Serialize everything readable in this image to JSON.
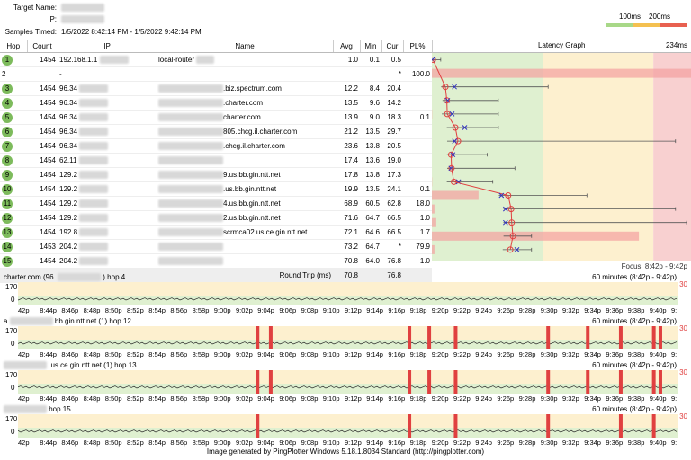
{
  "header": {
    "target_label": "Target Name:",
    "ip_label": "IP:",
    "samples_label": "Samples Timed:",
    "samples_value": "1/5/2022 8:42:14 PM - 1/5/2022 9:42:14 PM",
    "legend_100": "100ms",
    "legend_200": "200ms"
  },
  "columns": {
    "hop": "Hop",
    "count": "Count",
    "ip": "IP",
    "name": "Name",
    "avg": "Avg",
    "min": "Min",
    "cur": "Cur",
    "pl": "PL%",
    "graph": "Latency Graph",
    "scale": "234ms"
  },
  "rows": [
    {
      "hop": "1",
      "count": "1454",
      "ip": "192.168.1.1",
      "name": "local-router",
      "avg": "1.0",
      "min": "0.1",
      "cur": "0.5",
      "pl": ""
    },
    {
      "hop": "2",
      "count": "",
      "ip": "-",
      "name": "",
      "avg": "",
      "min": "",
      "cur": "*",
      "pl": "100.0"
    },
    {
      "hop": "3",
      "count": "1454",
      "ip": "96.34",
      "name": ".biz.spectrum.com",
      "avg": "12.2",
      "min": "8.4",
      "cur": "20.4",
      "pl": ""
    },
    {
      "hop": "4",
      "count": "1454",
      "ip": "96.34",
      "name": ".charter.com",
      "avg": "13.5",
      "min": "9.6",
      "cur": "14.2",
      "pl": ""
    },
    {
      "hop": "5",
      "count": "1454",
      "ip": "96.34",
      "name": "charter.com",
      "avg": "13.9",
      "min": "9.0",
      "cur": "18.3",
      "pl": "0.1"
    },
    {
      "hop": "6",
      "count": "1454",
      "ip": "96.34",
      "name": "805.chcg.il.charter.com",
      "avg": "21.2",
      "min": "13.5",
      "cur": "29.7",
      "pl": ""
    },
    {
      "hop": "7",
      "count": "1454",
      "ip": "96.34",
      "name": ".chcg.il.charter.com",
      "avg": "23.6",
      "min": "13.8",
      "cur": "20.5",
      "pl": ""
    },
    {
      "hop": "8",
      "count": "1454",
      "ip": "62.11",
      "name": "",
      "avg": "17.4",
      "min": "13.6",
      "cur": "19.0",
      "pl": ""
    },
    {
      "hop": "9",
      "count": "1454",
      "ip": "129.2",
      "name": "9.us.bb.gin.ntt.net",
      "avg": "17.8",
      "min": "13.8",
      "cur": "17.3",
      "pl": ""
    },
    {
      "hop": "10",
      "count": "1454",
      "ip": "129.2",
      "name": ".us.bb.gin.ntt.net",
      "avg": "19.9",
      "min": "13.5",
      "cur": "24.1",
      "pl": "0.1"
    },
    {
      "hop": "11",
      "count": "1454",
      "ip": "129.2",
      "name": "4.us.bb.gin.ntt.net",
      "avg": "68.9",
      "min": "60.5",
      "cur": "62.8",
      "pl": "18.0"
    },
    {
      "hop": "12",
      "count": "1454",
      "ip": "129.2",
      "name": "2.us.bb.gin.ntt.net",
      "avg": "71.6",
      "min": "64.7",
      "cur": "66.5",
      "pl": "1.0"
    },
    {
      "hop": "13",
      "count": "1454",
      "ip": "192.8",
      "name": "scrmca02.us.ce.gin.ntt.net",
      "avg": "72.1",
      "min": "64.6",
      "cur": "66.5",
      "pl": "1.7"
    },
    {
      "hop": "14",
      "count": "1453",
      "ip": "204.2",
      "name": "",
      "avg": "73.2",
      "min": "64.7",
      "cur": "*",
      "pl": "79.9"
    },
    {
      "hop": "15",
      "count": "1454",
      "ip": "204.2",
      "name": "",
      "avg": "70.8",
      "min": "64.0",
      "cur": "76.8",
      "pl": "1.0"
    }
  ],
  "roundtrip": {
    "label": "Round Trip (ms)",
    "avg": "70.8",
    "cur": "76.8",
    "focus": "Focus: 8:42p - 9:42p"
  },
  "latency_points": [
    {
      "avg": 1.0,
      "min": 0.1,
      "max": 8,
      "cur": 0.5,
      "pl": 0
    },
    {
      "avg": null,
      "min": null,
      "max": null,
      "cur": null,
      "pl": 100
    },
    {
      "avg": 12.2,
      "min": 8.4,
      "max": 105,
      "cur": 20.4,
      "pl": 0
    },
    {
      "avg": 13.5,
      "min": 9.6,
      "max": 60,
      "cur": 14.2,
      "pl": 0
    },
    {
      "avg": 13.9,
      "min": 9.0,
      "max": 60,
      "cur": 18.3,
      "pl": 0.1
    },
    {
      "avg": 21.2,
      "min": 13.5,
      "max": 60,
      "cur": 29.7,
      "pl": 0
    },
    {
      "avg": 23.6,
      "min": 13.8,
      "max": 220,
      "cur": 20.5,
      "pl": 0
    },
    {
      "avg": 17.4,
      "min": 13.6,
      "max": 50,
      "cur": 19.0,
      "pl": 0
    },
    {
      "avg": 17.8,
      "min": 13.8,
      "max": 75,
      "cur": 17.3,
      "pl": 0
    },
    {
      "avg": 19.9,
      "min": 13.5,
      "max": 55,
      "cur": 24.1,
      "pl": 0.1
    },
    {
      "avg": 68.9,
      "min": 60.5,
      "max": 140,
      "cur": 62.8,
      "pl": 18
    },
    {
      "avg": 71.6,
      "min": 64.7,
      "max": 220,
      "cur": 66.5,
      "pl": 1
    },
    {
      "avg": 72.1,
      "min": 64.6,
      "max": 230,
      "cur": 66.5,
      "pl": 1.7
    },
    {
      "avg": 73.2,
      "min": 64.7,
      "max": 90,
      "cur": null,
      "pl": 79.9
    },
    {
      "avg": 70.8,
      "min": 64.0,
      "max": 90,
      "cur": 76.8,
      "pl": 1
    }
  ],
  "colors": {
    "green": "#dff0d0",
    "yellow": "#fdf0cf",
    "red": "#f8d0d0",
    "line": "#e04040",
    "marker": "#3030c0"
  },
  "strips": [
    {
      "title": "charter.com (96.",
      "suffix": ") hop 4",
      "range": "60 minutes (8:42p - 9:42p)",
      "ymax": "170",
      "ymin": "0",
      "red": "30",
      "spikes": []
    },
    {
      "title": "a",
      "suffix": "bb.gin.ntt.net (1) hop 12",
      "range": "60 minutes (8:42p - 9:42p)",
      "ymax": "170",
      "ymin": "0",
      "red": "30",
      "spikes": [
        0.36,
        0.38,
        0.59,
        0.62,
        0.66,
        0.8,
        0.86,
        0.91,
        0.96,
        0.97
      ]
    },
    {
      "title": "",
      "suffix": ".us.ce.gin.ntt.net (1) hop 13",
      "range": "60 minutes (8:42p - 9:42p)",
      "ymax": "170",
      "ymin": "0",
      "red": "30",
      "spikes": [
        0.36,
        0.38,
        0.59,
        0.62,
        0.66,
        0.8,
        0.86,
        0.91,
        0.96,
        0.97
      ]
    },
    {
      "title": "",
      "suffix": "hop 15",
      "range": "60 minutes (8:42p - 9:42p)",
      "ymax": "170",
      "ymin": "0",
      "red": "30",
      "spikes": [
        0.36,
        0.59,
        0.66,
        0.8,
        0.91,
        0.96
      ]
    }
  ],
  "time_ticks": [
    "42p",
    "8:44p",
    "8:46p",
    "8:48p",
    "8:50p",
    "8:52p",
    "8:54p",
    "8:56p",
    "8:58p",
    "9:00p",
    "9:02p",
    "9:04p",
    "9:06p",
    "9:08p",
    "9:10p",
    "9:12p",
    "9:14p",
    "9:16p",
    "9:18p",
    "9:20p",
    "9:22p",
    "9:24p",
    "9:26p",
    "9:28p",
    "9:30p",
    "9:32p",
    "9:34p",
    "9:36p",
    "9:38p",
    "9:40p",
    "9:"
  ],
  "footer": "Image generated by PingPlotter Windows 5.18.1.8034 Standard (http://pingplotter.com)"
}
